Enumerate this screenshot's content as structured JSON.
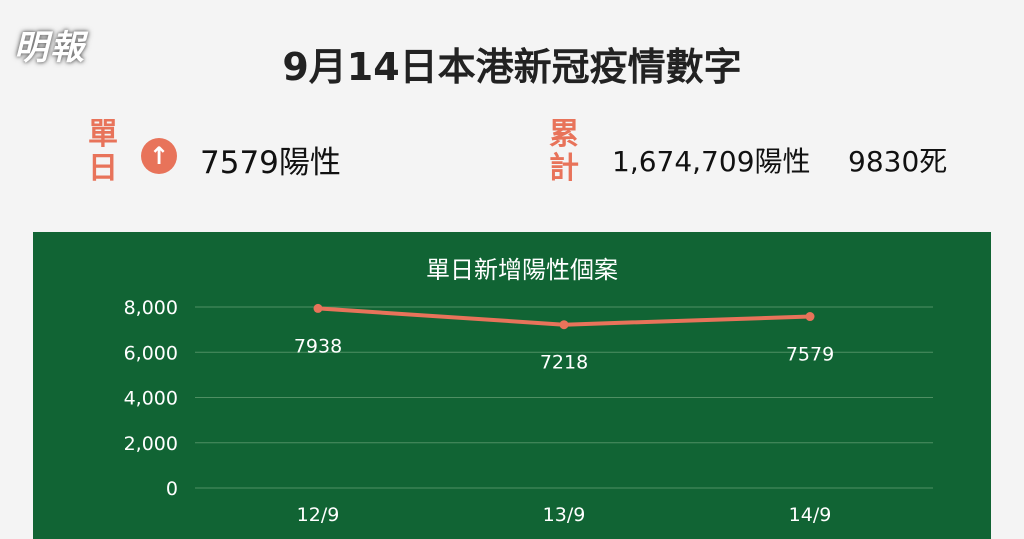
{
  "logo": "明報",
  "title": "9月14日本港新冠疫情數字",
  "daily": {
    "label": "單日",
    "icon": "arrow-up-circle-icon",
    "positive": "7579陽性"
  },
  "cumulative": {
    "label": "累計",
    "positive": "1,674,709陽性",
    "deaths": "9830死"
  },
  "colors": {
    "accent": "#e8735a",
    "panel": "#116434",
    "background": "#f4f4f4"
  },
  "chart_data": {
    "type": "line",
    "title": "單日新增陽性個案",
    "categories": [
      "12/9",
      "13/9",
      "14/9"
    ],
    "values": [
      7938,
      7218,
      7579
    ],
    "data_labels": [
      "7938",
      "7218",
      "7579"
    ],
    "ylim": [
      0,
      8000
    ],
    "yticks": [
      "8,000",
      "6,000",
      "4,000",
      "2,000",
      "0"
    ],
    "grid": true,
    "line_color": "#e8735a"
  }
}
